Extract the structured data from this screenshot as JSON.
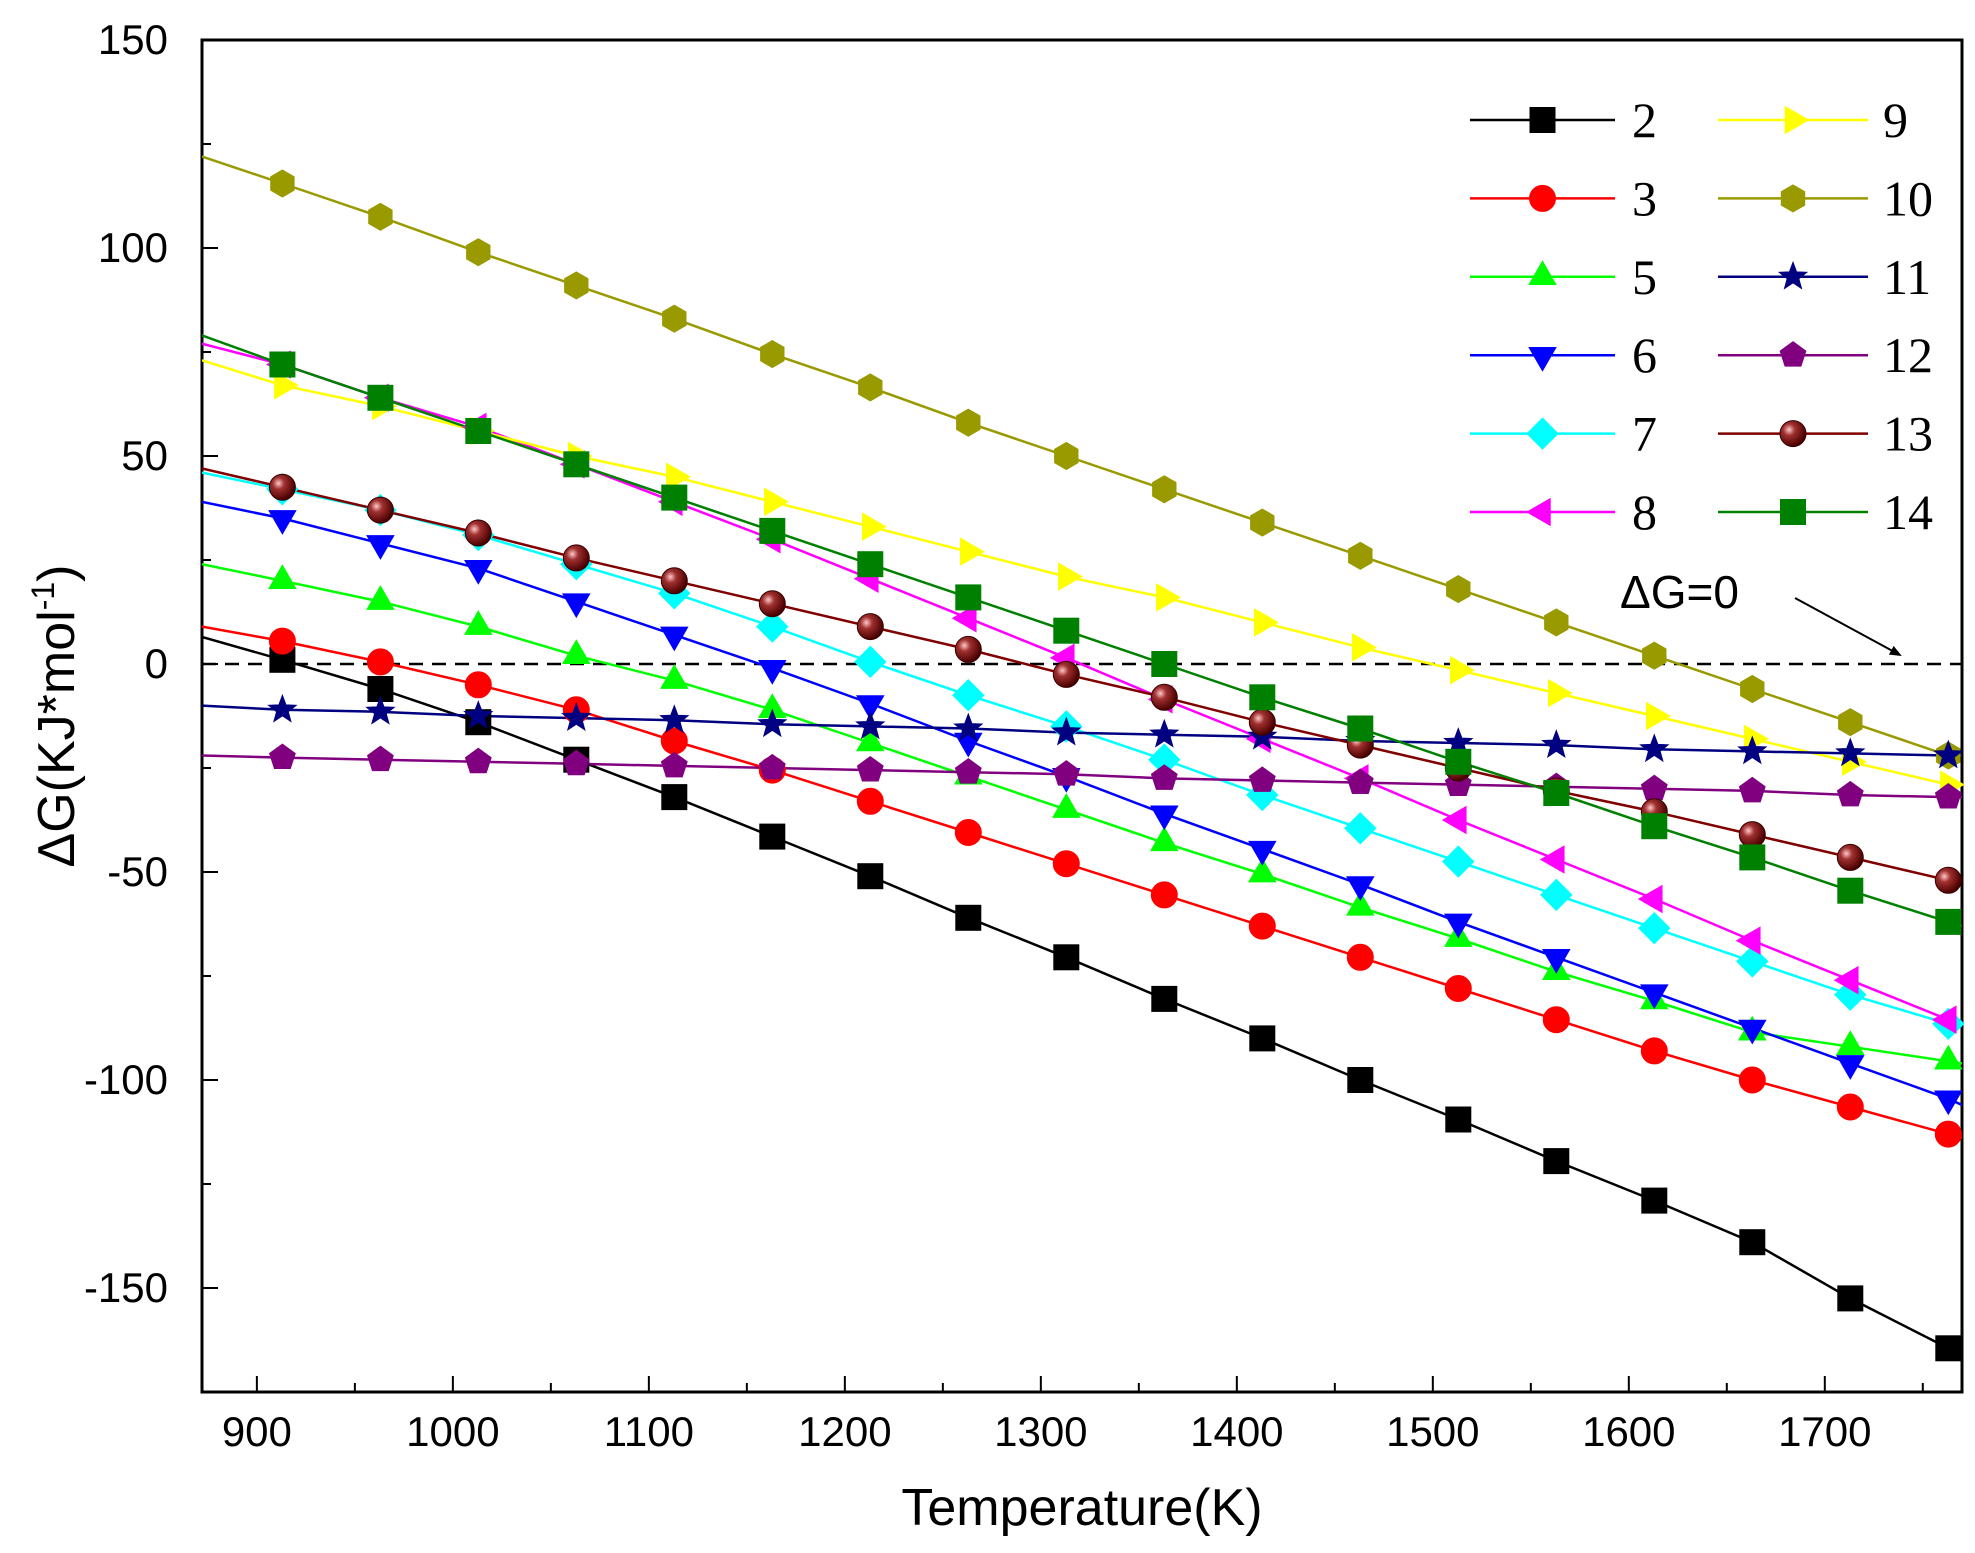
{
  "chart_data": {
    "type": "line",
    "title": "",
    "xlabel": "Temperature(K)",
    "ylabel": "ΔG(KJ*mol",
    "ylabel_sup": "-1",
    "ylabel_end": ")",
    "xlim": [
      872,
      1770
    ],
    "ylim": [
      -175,
      150
    ],
    "xticks": [
      900,
      1000,
      1100,
      1200,
      1300,
      1400,
      1500,
      1600,
      1700
    ],
    "xtick_labels": [
      "900",
      "1000",
      "1100",
      "1200",
      "1300",
      "1400",
      "1500",
      "1600",
      "1700"
    ],
    "yticks": [
      150,
      100,
      50,
      0,
      -50,
      -100,
      -150
    ],
    "ytick_labels": [
      "150",
      "100",
      "50",
      "0",
      "-50",
      "-100",
      "-150"
    ],
    "marker_x": [
      913,
      963,
      1013,
      1063,
      1113,
      1163,
      1213,
      1263,
      1313,
      1363,
      1413,
      1463,
      1513,
      1563,
      1613,
      1663,
      1713,
      1763
    ],
    "line_x_range": [
      872,
      1770
    ],
    "series": [
      {
        "name": "2",
        "color": "#000000",
        "marker": "square",
        "line_start": 6.5,
        "line_end": -166,
        "values": [
          1,
          -6,
          -14,
          -23,
          -32,
          -41.5,
          -51,
          -61,
          -70.5,
          -80.5,
          -90,
          -100,
          -109.5,
          -119.5,
          -129,
          -139,
          -152.5,
          -164.5
        ]
      },
      {
        "name": "3",
        "color": "#ff0000",
        "marker": "circle",
        "line_start": 9,
        "line_end": -114,
        "values": [
          5.5,
          0.5,
          -5,
          -11,
          -18.5,
          -25.5,
          -33,
          -40.5,
          -48,
          -55.5,
          -63,
          -70.5,
          -78,
          -85.5,
          -93,
          -100,
          -106.5,
          -113
        ]
      },
      {
        "name": "5",
        "color": "#00ff00",
        "marker": "triangle-up",
        "line_start": 24,
        "line_end": -96,
        "values": [
          20,
          15,
          9,
          2,
          -4,
          -11,
          -19,
          -27,
          -35,
          -43,
          -50.5,
          -58.5,
          -66,
          -74,
          -81,
          -88.5,
          -92,
          -95.5
        ]
      },
      {
        "name": "6",
        "color": "#0000ff",
        "marker": "triangle-down",
        "line_start": 39,
        "line_end": -106,
        "values": [
          35,
          29,
          23,
          15,
          7,
          -1,
          -9.5,
          -18.5,
          -27,
          -36,
          -44.5,
          -53,
          -62,
          -70.5,
          -79,
          -87.5,
          -96,
          -104.5
        ]
      },
      {
        "name": "7",
        "color": "#00ffff",
        "marker": "diamond",
        "line_start": 46,
        "line_end": -87,
        "values": [
          42,
          37,
          31,
          24,
          17,
          9,
          0.5,
          -7.5,
          -15,
          -23,
          -31.5,
          -39.5,
          -47.5,
          -55.5,
          -63.5,
          -71.5,
          -79.5,
          -86.5
        ]
      },
      {
        "name": "8",
        "color": "#ff00ff",
        "marker": "triangle-left",
        "line_start": 77,
        "line_end": -86,
        "values": [
          72,
          64,
          57,
          48,
          39,
          30,
          20.5,
          11,
          1.5,
          -8.5,
          -18,
          -27.5,
          -37.5,
          -47,
          -56.5,
          -66.5,
          -76,
          -85.5
        ]
      },
      {
        "name": "9",
        "color": "#ffff00",
        "marker": "triangle-right",
        "line_start": 73,
        "line_end": -29,
        "values": [
          67,
          62,
          56,
          50,
          45,
          39,
          33,
          27,
          21,
          16,
          10,
          4,
          -1.5,
          -7,
          -12.5,
          -18,
          -23.5,
          -29
        ]
      },
      {
        "name": "10",
        "color": "#999900",
        "marker": "hexagon",
        "line_start": 122,
        "line_end": -22,
        "values": [
          115.5,
          107.5,
          99,
          91,
          83,
          74.5,
          66.5,
          58,
          50,
          42,
          34,
          26,
          18,
          10,
          2,
          -6,
          -14,
          -22
        ]
      },
      {
        "name": "11",
        "color": "#000080",
        "marker": "star",
        "line_start": -10,
        "line_end": -22,
        "values": [
          -11,
          -11.5,
          -12.5,
          -13,
          -13.5,
          -14.5,
          -15,
          -15.5,
          -16.5,
          -17,
          -17.5,
          -18.5,
          -19,
          -19.5,
          -20.5,
          -21,
          -21.5,
          -22
        ]
      },
      {
        "name": "12",
        "color": "#800080",
        "marker": "pentagon",
        "line_start": -22,
        "line_end": -32,
        "values": [
          -22.5,
          -23,
          -23.5,
          -24,
          -24.5,
          -25,
          -25.5,
          -26,
          -26.5,
          -27.5,
          -28,
          -28.5,
          -29,
          -29.5,
          -30,
          -30.5,
          -31.5,
          -32
        ]
      },
      {
        "name": "13",
        "color": "#800000",
        "marker": "sphere",
        "line_start": 47,
        "line_end": -52,
        "values": [
          42.5,
          37,
          31.5,
          25.5,
          20,
          14.5,
          9,
          3.5,
          -2.5,
          -8,
          -14,
          -19.5,
          -25,
          -30.5,
          -35.5,
          -41,
          -46.5,
          -52
        ]
      },
      {
        "name": "14",
        "color": "#008000",
        "marker": "square",
        "line_start": 79,
        "line_end": -63,
        "values": [
          72,
          64,
          56,
          48,
          40,
          32,
          24,
          16,
          8,
          0,
          -8,
          -15.5,
          -23.5,
          -31,
          -39,
          -46.5,
          -54.5,
          -62
        ]
      }
    ],
    "reference_line": {
      "y": 0,
      "style": "dashed"
    },
    "annotation": {
      "text": "ΔG=0",
      "points_to_x": 1765,
      "points_to_y": 0
    },
    "legend": {
      "position": "top-right",
      "columns": 2
    }
  }
}
